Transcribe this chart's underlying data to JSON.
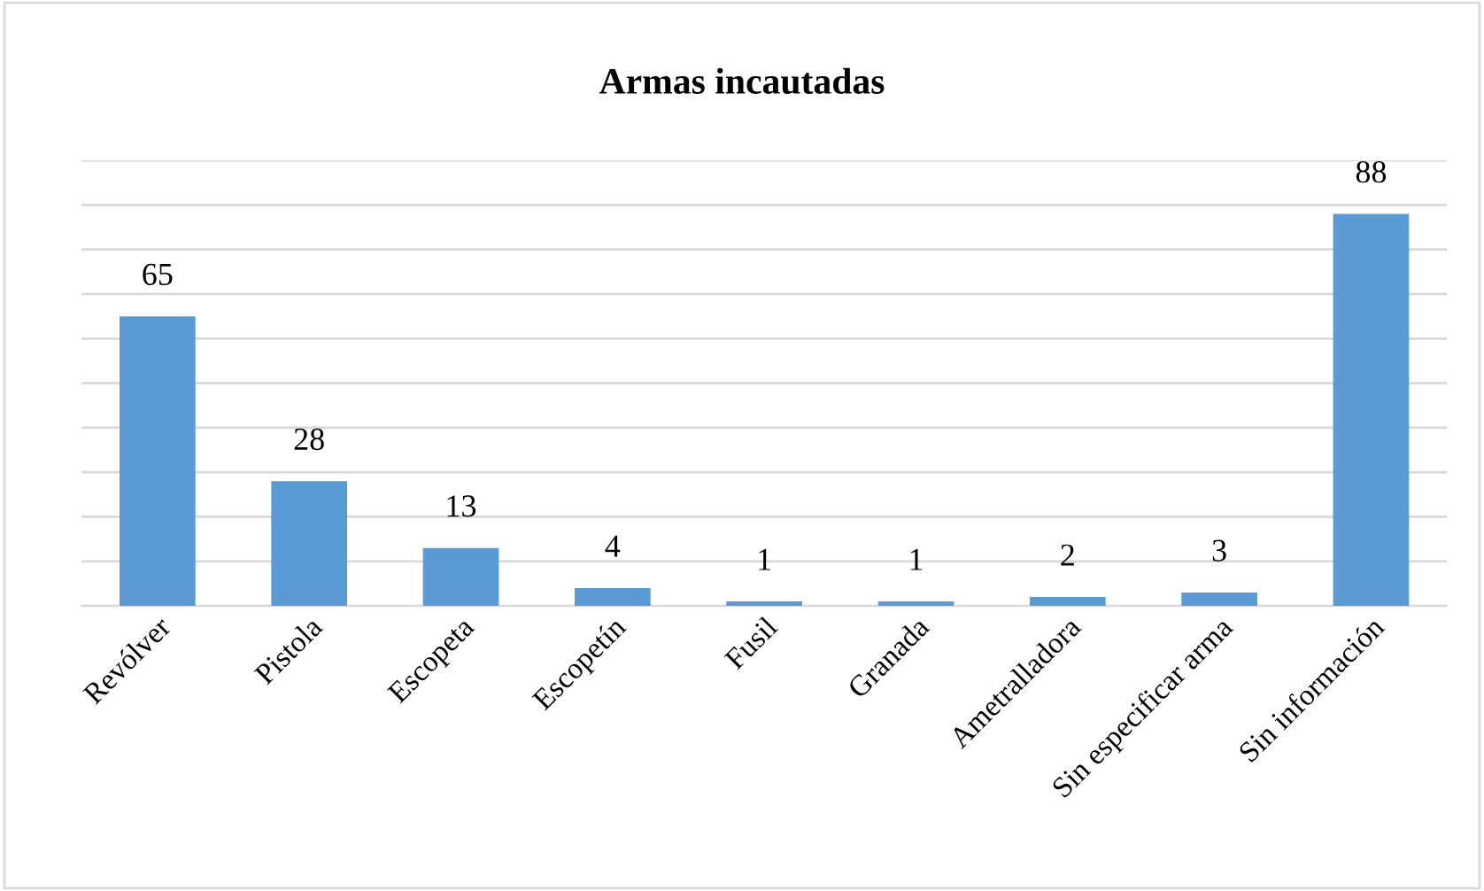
{
  "chart_data": {
    "type": "bar",
    "title": "Armas incautadas",
    "categories": [
      "Revólver",
      "Pistola",
      "Escopeta",
      "Escopetín",
      "Fusil",
      "Granada",
      "Ametralladora",
      "Sin especificar arma",
      "Sin información"
    ],
    "values": [
      65,
      28,
      13,
      4,
      1,
      1,
      2,
      3,
      88
    ],
    "color": "#5b9bd5",
    "data_labels": true,
    "ylim": [
      0,
      100
    ],
    "yticks": [
      {
        "value": 0,
        "label": null
      },
      {
        "value": 10,
        "label": null
      },
      {
        "value": 20,
        "label": null
      },
      {
        "value": 30,
        "label": null
      },
      {
        "value": 40,
        "label": null
      },
      {
        "value": 50,
        "label": null
      },
      {
        "value": 60,
        "label": null
      },
      {
        "value": 70,
        "label": null
      },
      {
        "value": 80,
        "label": null
      },
      {
        "value": 90,
        "label": null
      },
      {
        "value": 100,
        "label": null
      }
    ],
    "tick_labels": "x",
    "grid": "y",
    "legend": false
  }
}
